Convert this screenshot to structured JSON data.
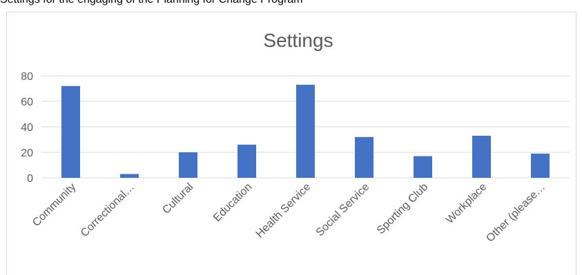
{
  "caption": "Settings for the engaging of the Planning for Change Program",
  "chart_data": {
    "type": "bar",
    "title": "Settings",
    "categories": [
      "Community",
      "Correctional…",
      "Cultural",
      "Education",
      "Health Service",
      "Social Service",
      "Sporting Club",
      "Workplace",
      "Other (please…"
    ],
    "values": [
      72,
      3,
      20,
      26,
      73,
      32,
      17,
      33,
      19
    ],
    "ylim": [
      0,
      80
    ],
    "yticks": [
      0,
      20,
      40,
      60,
      80
    ],
    "grid": true,
    "legend": "none",
    "bar_color": "#4472c4",
    "gridline_color": "#d9d9d9",
    "text_color": "#595959"
  }
}
